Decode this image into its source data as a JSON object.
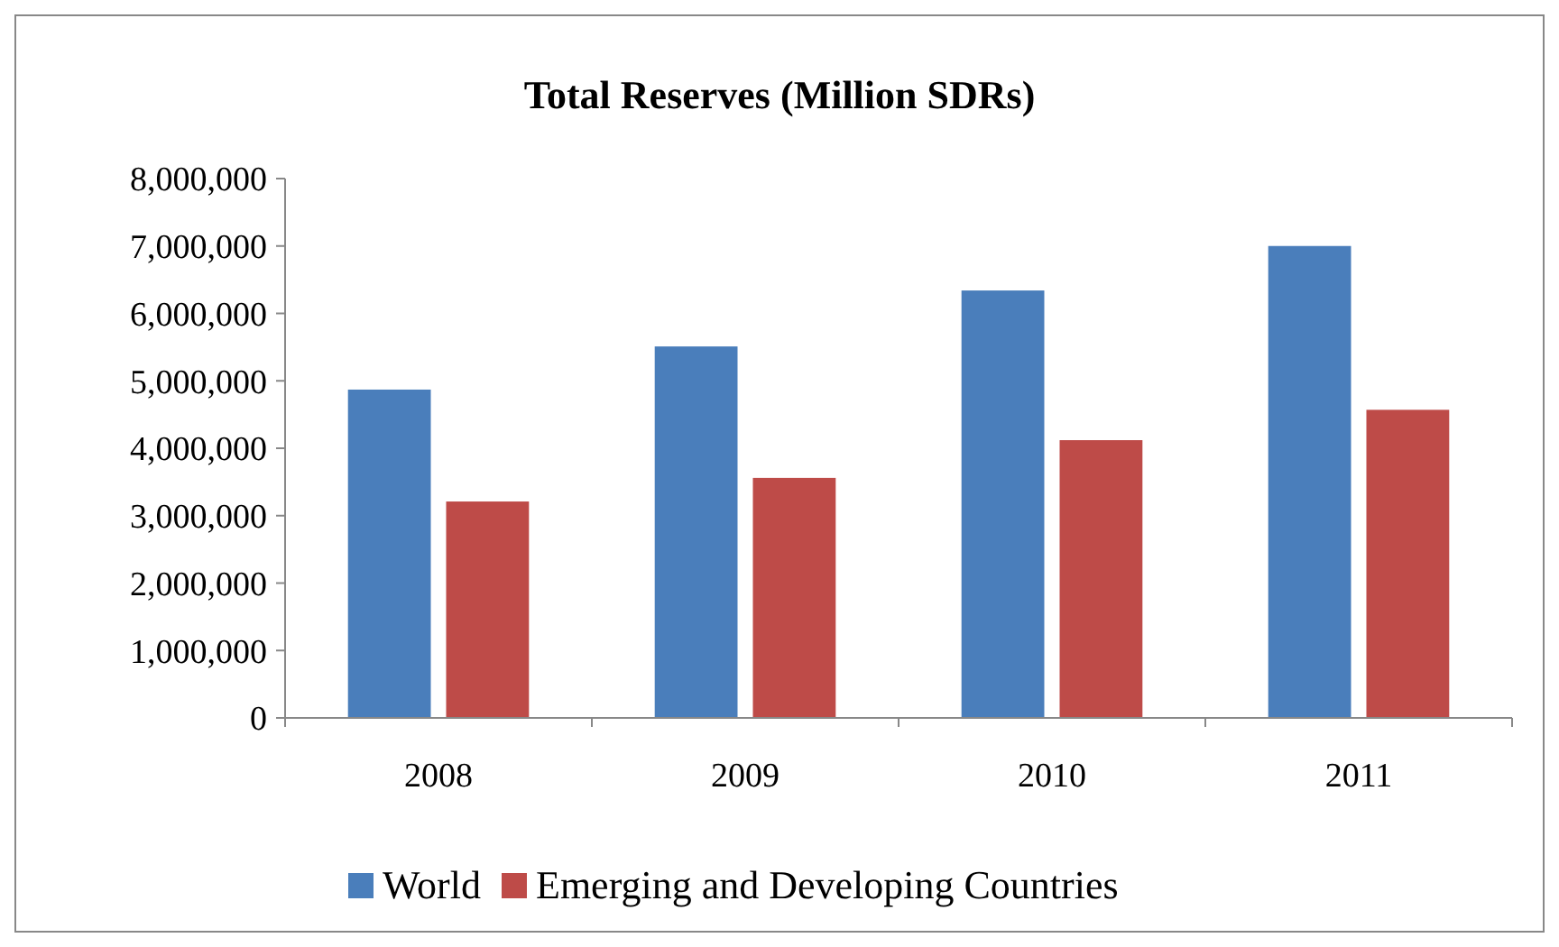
{
  "chart_data": {
    "type": "bar",
    "title": "Total Reserves (Million SDRs)",
    "categories": [
      "2008",
      "2009",
      "2010",
      "2011"
    ],
    "series": [
      {
        "name": "World",
        "color": "#4a7ebb",
        "values": [
          4870000,
          5510000,
          6340000,
          7000000
        ]
      },
      {
        "name": "Emerging and Developing Countries",
        "color": "#be4b48",
        "values": [
          3210000,
          3560000,
          4120000,
          4570000
        ]
      }
    ],
    "ylim": [
      0,
      8000000
    ],
    "yticks": [
      {
        "value": 0,
        "label": "0"
      },
      {
        "value": 1000000,
        "label": "1,000,000"
      },
      {
        "value": 2000000,
        "label": "2,000,000"
      },
      {
        "value": 3000000,
        "label": "3,000,000"
      },
      {
        "value": 4000000,
        "label": "4,000,000"
      },
      {
        "value": 5000000,
        "label": "5,000,000"
      },
      {
        "value": 6000000,
        "label": "6,000,000"
      },
      {
        "value": 7000000,
        "label": "7,000,000"
      },
      {
        "value": 8000000,
        "label": "8,000,000"
      }
    ],
    "grid": false,
    "legend": "bottom"
  }
}
